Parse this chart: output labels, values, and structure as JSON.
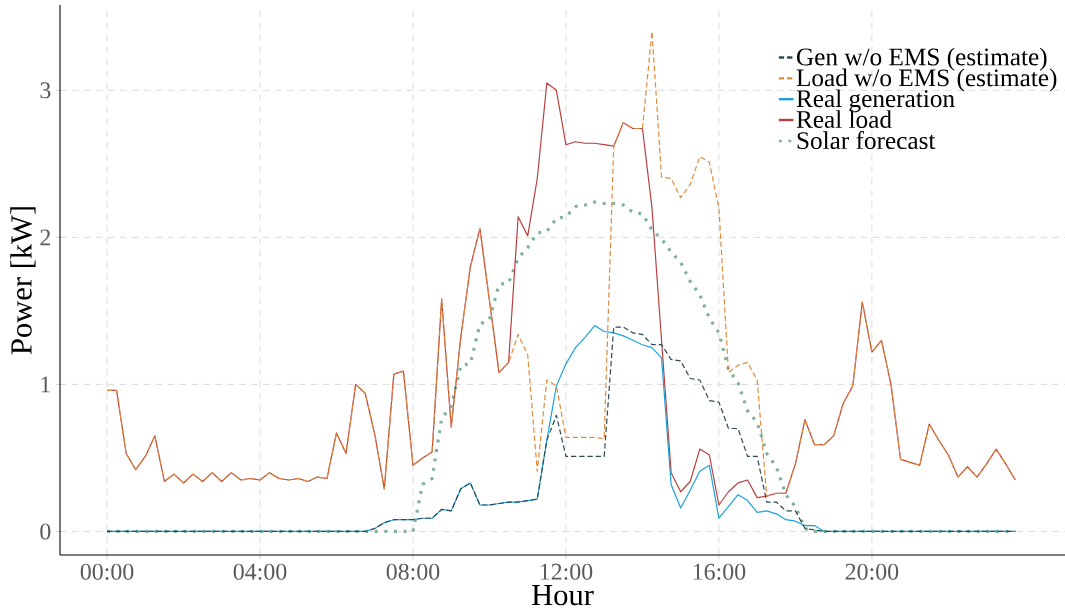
{
  "chart_data": {
    "type": "line",
    "xlabel": "Hour",
    "ylabel": "Power [kW]",
    "x": [
      0,
      0.25,
      0.5,
      0.75,
      1,
      1.25,
      1.5,
      1.75,
      2,
      2.25,
      2.5,
      2.75,
      3,
      3.25,
      3.5,
      3.75,
      4,
      4.25,
      4.5,
      4.75,
      5,
      5.25,
      5.5,
      5.75,
      6,
      6.25,
      6.5,
      6.75,
      7,
      7.25,
      7.5,
      7.75,
      8,
      8.25,
      8.5,
      8.75,
      9,
      9.25,
      9.5,
      9.75,
      10,
      10.25,
      10.5,
      10.75,
      11,
      11.25,
      11.5,
      11.75,
      12,
      12.25,
      12.5,
      12.75,
      13,
      13.25,
      13.5,
      13.75,
      14,
      14.25,
      14.5,
      14.75,
      15,
      15.25,
      15.5,
      15.75,
      16,
      16.25,
      16.5,
      16.75,
      17,
      17.25,
      17.5,
      17.75,
      18,
      18.25,
      18.5,
      18.75,
      19,
      19.25,
      19.5,
      19.75,
      20,
      20.25,
      20.5,
      20.75,
      21,
      21.25,
      21.5,
      21.75,
      22,
      22.25,
      22.5,
      22.75,
      23,
      23.25,
      23.5,
      23.75
    ],
    "series": [
      {
        "name": "Gen w/o EMS (estimate)",
        "color": "#2e4a56",
        "line_style": "dashed",
        "values": [
          0,
          0,
          0,
          0,
          0,
          0,
          0,
          0,
          0,
          0,
          0,
          0,
          0,
          0,
          0,
          0,
          0,
          0,
          0,
          0,
          0,
          0,
          0,
          0,
          0,
          0,
          0,
          0,
          0.02,
          0.06,
          0.08,
          0.08,
          0.08,
          0.09,
          0.09,
          0.15,
          0.14,
          0.29,
          0.33,
          0.18,
          0.18,
          0.19,
          0.2,
          0.2,
          0.21,
          0.22,
          0.62,
          0.79,
          0.51,
          0.51,
          0.51,
          0.51,
          0.51,
          1.39,
          1.39,
          1.35,
          1.34,
          1.27,
          1.27,
          1.17,
          1.16,
          1.04,
          1.03,
          0.89,
          0.88,
          0.7,
          0.7,
          0.51,
          0.51,
          0.2,
          0.2,
          0.14,
          0.14,
          0.02,
          0.01,
          0,
          0,
          0,
          0,
          0,
          0,
          0,
          0,
          0,
          0,
          0,
          0,
          0,
          0,
          0,
          0,
          0,
          0,
          0,
          0,
          0
        ]
      },
      {
        "name": "Load w/o EMS (estimate)",
        "color": "#e08a3c",
        "line_style": "dashed",
        "values": [
          0.96,
          0.96,
          0.53,
          0.42,
          0.51,
          0.65,
          0.34,
          0.39,
          0.33,
          0.39,
          0.34,
          0.4,
          0.34,
          0.4,
          0.35,
          0.36,
          0.35,
          0.4,
          0.36,
          0.35,
          0.36,
          0.34,
          0.37,
          0.36,
          0.67,
          0.53,
          1.0,
          0.94,
          0.66,
          0.29,
          1.07,
          1.09,
          0.45,
          0.5,
          0.54,
          1.58,
          0.71,
          1.32,
          1.8,
          2.06,
          1.57,
          1.08,
          1.15,
          1.34,
          1.2,
          0.41,
          1.03,
          0.99,
          0.64,
          0.64,
          0.64,
          0.64,
          0.63,
          2.62,
          2.78,
          2.74,
          2.74,
          3.4,
          2.41,
          2.4,
          2.27,
          2.36,
          2.55,
          2.51,
          2.2,
          1.08,
          1.13,
          1.15,
          1.03,
          0.24,
          0.26,
          0.26,
          0.46,
          0.76,
          0.59,
          0.59,
          0.65,
          0.87,
          0.99,
          1.56,
          1.22,
          1.3,
          1.0,
          0.49,
          0.47,
          0.45,
          0.73,
          0.62,
          0.52,
          0.37,
          0.44,
          0.37,
          0.46,
          0.56,
          0.46,
          0.35
        ]
      },
      {
        "name": "Real generation",
        "color": "#1ba1d9",
        "line_style": "solid",
        "values": [
          0,
          0,
          0,
          0,
          0,
          0,
          0,
          0,
          0,
          0,
          0,
          0,
          0,
          0,
          0,
          0,
          0,
          0,
          0,
          0,
          0,
          0,
          0,
          0,
          0,
          0,
          0,
          0,
          0.02,
          0.06,
          0.08,
          0.08,
          0.08,
          0.09,
          0.09,
          0.15,
          0.14,
          0.29,
          0.33,
          0.18,
          0.18,
          0.19,
          0.2,
          0.2,
          0.21,
          0.22,
          0.62,
          0.99,
          1.14,
          1.25,
          1.32,
          1.4,
          1.36,
          1.35,
          1.33,
          1.3,
          1.27,
          1.25,
          1.18,
          0.32,
          0.16,
          0.28,
          0.41,
          0.45,
          0.09,
          0.17,
          0.25,
          0.21,
          0.13,
          0.14,
          0.12,
          0.08,
          0.07,
          0.04,
          0.04,
          0,
          0,
          0,
          0,
          0,
          0,
          0,
          0,
          0,
          0,
          0,
          0,
          0,
          0,
          0,
          0,
          0,
          0,
          0,
          0,
          0
        ]
      },
      {
        "name": "Real load",
        "color": "#b8403f",
        "line_style": "solid",
        "values": [
          0.96,
          0.96,
          0.53,
          0.42,
          0.51,
          0.65,
          0.34,
          0.39,
          0.33,
          0.39,
          0.34,
          0.4,
          0.34,
          0.4,
          0.35,
          0.36,
          0.35,
          0.4,
          0.36,
          0.35,
          0.36,
          0.34,
          0.37,
          0.36,
          0.67,
          0.53,
          1.0,
          0.94,
          0.66,
          0.29,
          1.07,
          1.09,
          0.45,
          0.5,
          0.54,
          1.58,
          0.71,
          1.32,
          1.8,
          2.06,
          1.57,
          1.08,
          1.15,
          2.14,
          2.01,
          2.4,
          3.05,
          3.0,
          2.63,
          2.65,
          2.64,
          2.64,
          2.63,
          2.62,
          2.78,
          2.74,
          2.74,
          2.2,
          1.3,
          0.4,
          0.27,
          0.34,
          0.56,
          0.52,
          0.18,
          0.27,
          0.33,
          0.35,
          0.23,
          0.24,
          0.26,
          0.26,
          0.46,
          0.76,
          0.59,
          0.59,
          0.65,
          0.87,
          0.99,
          1.56,
          1.22,
          1.3,
          1.0,
          0.49,
          0.47,
          0.45,
          0.73,
          0.62,
          0.52,
          0.37,
          0.44,
          0.37,
          0.46,
          0.56,
          0.46,
          0.35
        ]
      },
      {
        "name": "Solar forecast",
        "color": "#7fb19b",
        "line_style": "dotted",
        "values": [
          0,
          0,
          0,
          0,
          0,
          0,
          0,
          0,
          0,
          0,
          0,
          0,
          0,
          0,
          0,
          0,
          0,
          0,
          0,
          0,
          0,
          0,
          0,
          0,
          0,
          0,
          0,
          0,
          0,
          0,
          0,
          0,
          0,
          0.32,
          0.36,
          0.77,
          0.85,
          1.13,
          1.14,
          1.41,
          1.44,
          1.68,
          1.69,
          1.86,
          1.93,
          2.03,
          2.04,
          2.13,
          2.14,
          2.21,
          2.22,
          2.24,
          2.23,
          2.23,
          2.22,
          2.17,
          2.16,
          2.05,
          1.99,
          1.9,
          1.83,
          1.7,
          1.61,
          1.45,
          1.35,
          1.1,
          1.01,
          0.82,
          0.74,
          0.53,
          0.44,
          0.25,
          0.17,
          0.02,
          0,
          0,
          0,
          0,
          0,
          0,
          0,
          0,
          0,
          0,
          0,
          0,
          0,
          0,
          0,
          0,
          0,
          0,
          0,
          0,
          0,
          0
        ]
      }
    ],
    "xlim": [
      -1.23,
      25.05
    ],
    "ylim": [
      -0.16,
      3.58
    ],
    "xticks": [
      {
        "value": 0,
        "label": "00:00"
      },
      {
        "value": 4,
        "label": "04:00"
      },
      {
        "value": 8,
        "label": "08:00"
      },
      {
        "value": 12,
        "label": "12:00"
      },
      {
        "value": 16,
        "label": "16:00"
      },
      {
        "value": 20,
        "label": "20:00"
      }
    ],
    "yticks": [
      0,
      1,
      2,
      3
    ],
    "grid": true,
    "legend": "top right"
  }
}
